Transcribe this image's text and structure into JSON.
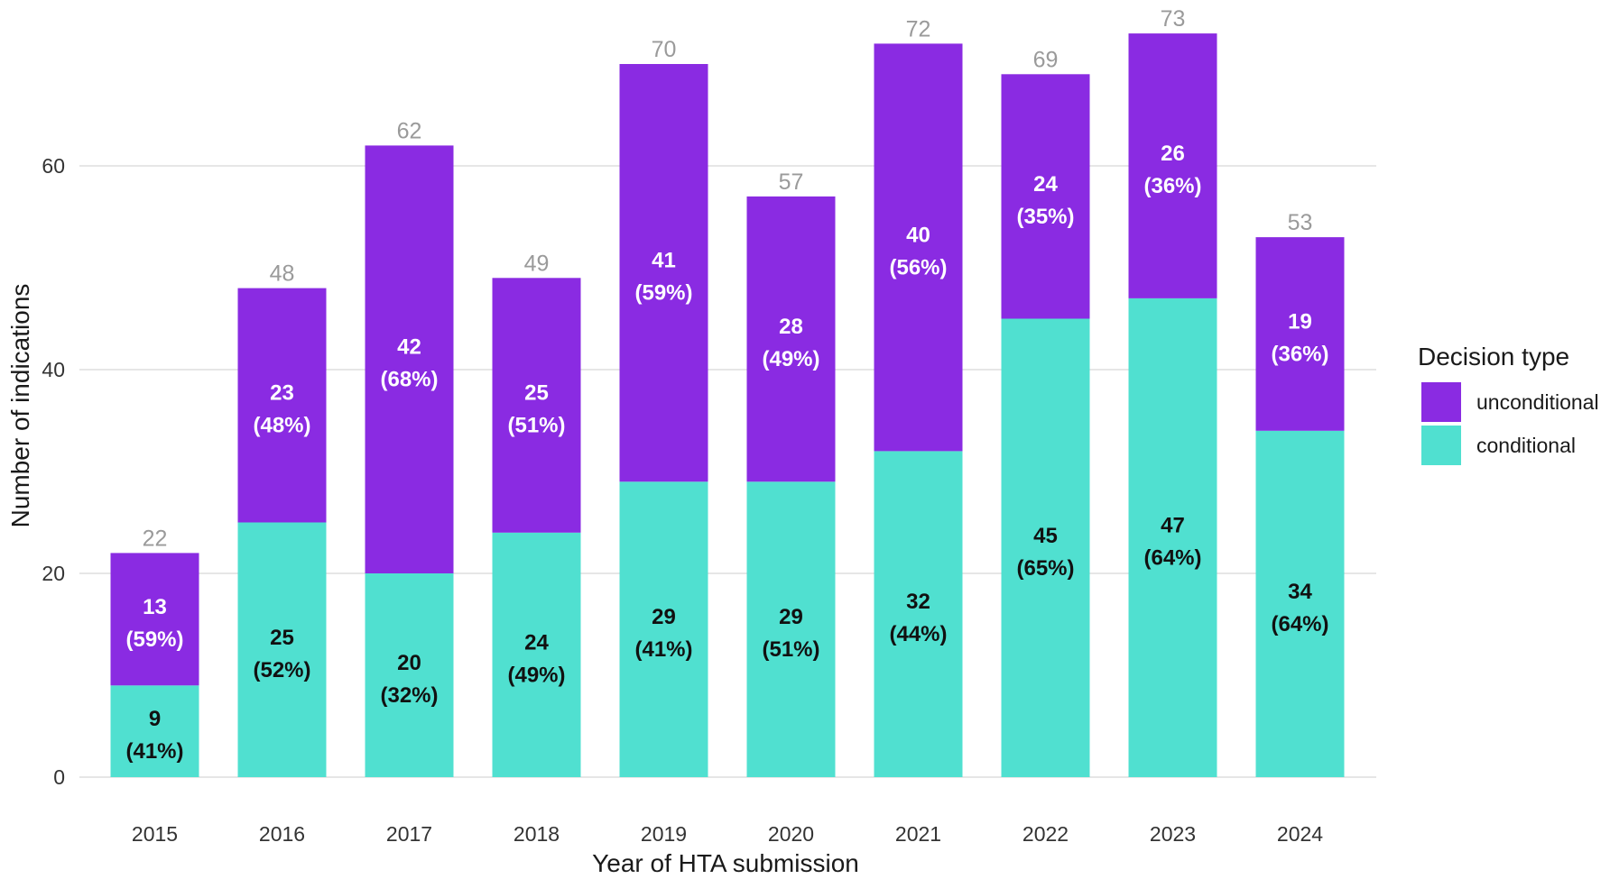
{
  "chart_data": {
    "type": "bar",
    "stacked": true,
    "xlabel": "Year of HTA submission",
    "ylabel": "Number of indications",
    "ylim": [
      0,
      75
    ],
    "yticks": [
      0,
      20,
      40,
      60
    ],
    "grid": true,
    "legend_position": "right",
    "legend_title": "Decision type",
    "categories": [
      "2015",
      "2016",
      "2017",
      "2018",
      "2019",
      "2020",
      "2021",
      "2022",
      "2023",
      "2024"
    ],
    "series": [
      {
        "name": "conditional",
        "color": "#50E0D0",
        "label_color": "#111111",
        "values": [
          9,
          25,
          20,
          24,
          29,
          29,
          32,
          45,
          47,
          34
        ],
        "percent_labels": [
          "(41%)",
          "(52%)",
          "(32%)",
          "(49%)",
          "(41%)",
          "(51%)",
          "(44%)",
          "(65%)",
          "(64%)",
          "(64%)"
        ]
      },
      {
        "name": "unconditional",
        "color": "#8A2BE2",
        "label_color": "#ffffff",
        "values": [
          13,
          23,
          42,
          25,
          41,
          28,
          40,
          24,
          26,
          19
        ],
        "percent_labels": [
          "(59%)",
          "(48%)",
          "(68%)",
          "(51%)",
          "(59%)",
          "(49%)",
          "(56%)",
          "(35%)",
          "(36%)",
          "(36%)"
        ]
      }
    ],
    "totals": [
      22,
      48,
      62,
      49,
      70,
      57,
      72,
      69,
      73,
      53
    ],
    "legend_order": [
      "unconditional",
      "conditional"
    ]
  }
}
